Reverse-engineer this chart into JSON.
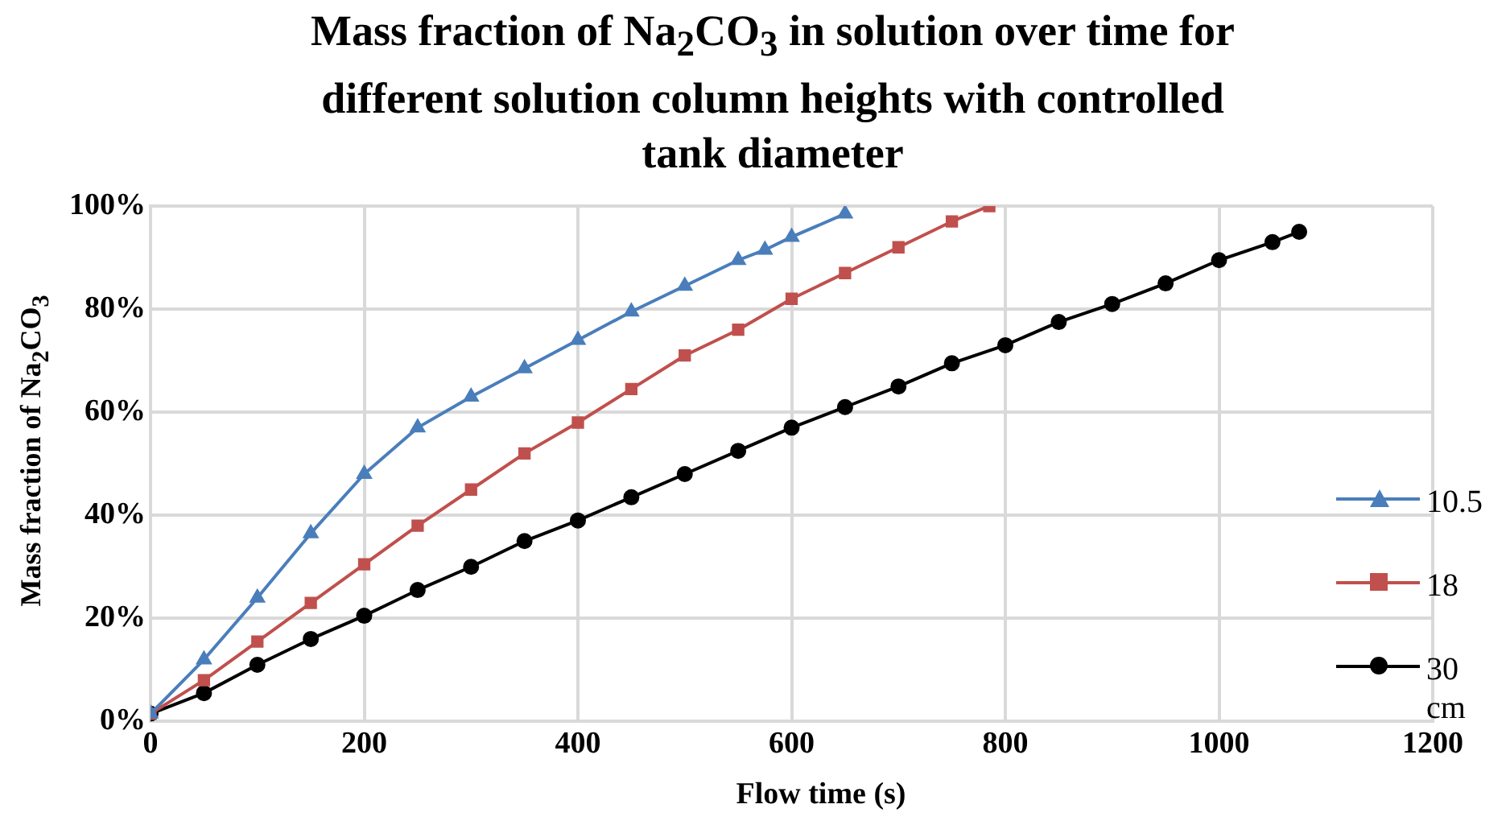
{
  "chart_data": {
    "type": "line",
    "title": "Mass fraction of Na$_{2}$CO$_{3}$ in solution over time for different solution column heights with controlled tank diameter",
    "xlabel": "Flow time (s)",
    "ylabel": "Mass fraction of Na$_{2}$CO$_{3}$",
    "xlim": [
      0,
      1200
    ],
    "xticks": [
      0,
      200,
      400,
      600,
      800,
      1000,
      1200
    ],
    "ylim": [
      0,
      100
    ],
    "yticks": [
      {
        "value": 0,
        "label": "0%"
      },
      {
        "value": 20,
        "label": "20%"
      },
      {
        "value": 40,
        "label": "40%"
      },
      {
        "value": 60,
        "label": "60%"
      },
      {
        "value": 80,
        "label": "80%"
      },
      {
        "value": 100,
        "label": "100%"
      }
    ],
    "grid": true,
    "legend": "right",
    "line_style": "solid",
    "series": [
      {
        "name": "10.5",
        "color": "#4a7ebb",
        "marker": "triangle",
        "x": [
          0,
          50,
          100,
          150,
          200,
          250,
          300,
          350,
          400,
          450,
          500,
          550,
          575,
          600,
          650
        ],
        "values": [
          1.5,
          12,
          24,
          36.5,
          48,
          57,
          63,
          68.5,
          74,
          79.5,
          84.5,
          89.5,
          91.5,
          94,
          98.5
        ]
      },
      {
        "name": "18",
        "color": "#c0504d",
        "marker": "square",
        "x": [
          0,
          50,
          100,
          150,
          200,
          250,
          300,
          350,
          400,
          450,
          500,
          550,
          600,
          650,
          700,
          750,
          785
        ],
        "values": [
          1.5,
          8,
          15.5,
          23,
          30.5,
          38,
          45,
          52,
          58,
          64.5,
          71,
          76,
          82,
          87,
          92,
          97,
          100
        ]
      },
      {
        "name": "30 cm",
        "color": "#000000",
        "marker": "circle",
        "x": [
          0,
          50,
          100,
          150,
          200,
          250,
          300,
          350,
          400,
          450,
          500,
          550,
          600,
          650,
          700,
          750,
          800,
          850,
          900,
          950,
          1000,
          1050,
          1075
        ],
        "values": [
          1.5,
          5.5,
          11,
          16,
          20.5,
          25.5,
          30,
          35,
          39,
          43.5,
          48,
          52.5,
          57,
          61,
          65,
          69.5,
          73,
          77.5,
          81,
          85,
          89.5,
          93,
          95
        ]
      }
    ]
  }
}
